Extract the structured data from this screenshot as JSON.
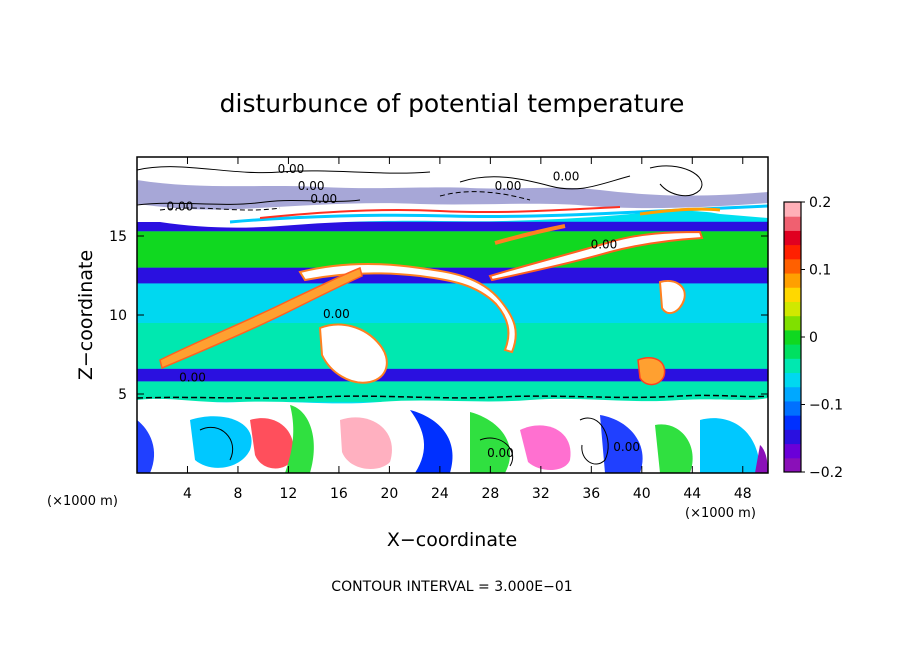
{
  "chart_data": {
    "type": "heatmap",
    "title": "disturbunce of potential temperature",
    "xlabel": "X−coordinate",
    "ylabel": "Z−coordinate",
    "x_unit_left": "(×1000 m)",
    "x_unit_right": "(×1000 m)",
    "xlim": [
      0,
      50
    ],
    "ylim": [
      0,
      20
    ],
    "x_ticks": [
      "4",
      "8",
      "12",
      "16",
      "20",
      "24",
      "28",
      "32",
      "36",
      "40",
      "44",
      "48"
    ],
    "x_tick_values": [
      4,
      8,
      12,
      16,
      20,
      24,
      28,
      32,
      36,
      40,
      44,
      48
    ],
    "y_ticks": [
      "5",
      "10",
      "15"
    ],
    "y_tick_values": [
      5,
      10,
      15
    ],
    "colorbar": {
      "range": [
        -0.2,
        0.2
      ],
      "tick_labels": [
        "0.2",
        "0.1",
        "0",
        "−0.1",
        "−0.2"
      ],
      "tick_values": [
        0.2,
        0.1,
        0,
        -0.1,
        -0.2
      ],
      "colors": [
        "#8a10b8",
        "#6a00d8",
        "#2a10e0",
        "#0030ff",
        "#0070ff",
        "#00a8ff",
        "#00d8f0",
        "#00e8b0",
        "#00e060",
        "#10d820",
        "#80e000",
        "#d0e800",
        "#ffd800",
        "#ffa000",
        "#ff6000",
        "#ff2000",
        "#e00020",
        "#f06070",
        "#ffb0b8"
      ]
    },
    "bands": [
      {
        "z_from": 0,
        "z_to": 4.5,
        "value": "mixed"
      },
      {
        "z_from": 4.5,
        "z_to": 5.8,
        "value": -0.05
      },
      {
        "z_from": 5.8,
        "z_to": 6.6,
        "value": -0.14
      },
      {
        "z_from": 6.6,
        "z_to": 9.5,
        "value": -0.04
      },
      {
        "z_from": 9.5,
        "z_to": 12.0,
        "value": -0.06
      },
      {
        "z_from": 12.0,
        "z_to": 13.0,
        "value": -0.14
      },
      {
        "z_from": 13.0,
        "z_to": 15.3,
        "value": 0.0
      },
      {
        "z_from": 15.3,
        "z_to": 15.9,
        "value": -0.15
      },
      {
        "z_from": 15.9,
        "z_to": 20.0,
        "value": "strong positive (white)"
      }
    ],
    "contour_labels": [
      {
        "text": "0.00",
        "x": 12.2,
        "z": 19.0
      },
      {
        "text": "0.00",
        "x": 13.8,
        "z": 17.9
      },
      {
        "text": "0.00",
        "x": 14.8,
        "z": 17.1
      },
      {
        "text": "0.00",
        "x": 3.4,
        "z": 16.6
      },
      {
        "text": "0.00",
        "x": 29.4,
        "z": 17.9
      },
      {
        "text": "0.00",
        "x": 34.0,
        "z": 18.5
      },
      {
        "text": "0.00",
        "x": 37.0,
        "z": 14.2
      },
      {
        "text": "0.00",
        "x": 15.8,
        "z": 9.8
      },
      {
        "text": "0.00",
        "x": 28.8,
        "z": 1.0
      },
      {
        "text": "0.00",
        "x": 38.8,
        "z": 1.4
      },
      {
        "text": "0.00",
        "x": 4.4,
        "z": 5.8
      }
    ],
    "contour_interval_text": "CONTOUR INTERVAL = 3.000E−01",
    "grid": false,
    "legend": "colorbar right"
  }
}
